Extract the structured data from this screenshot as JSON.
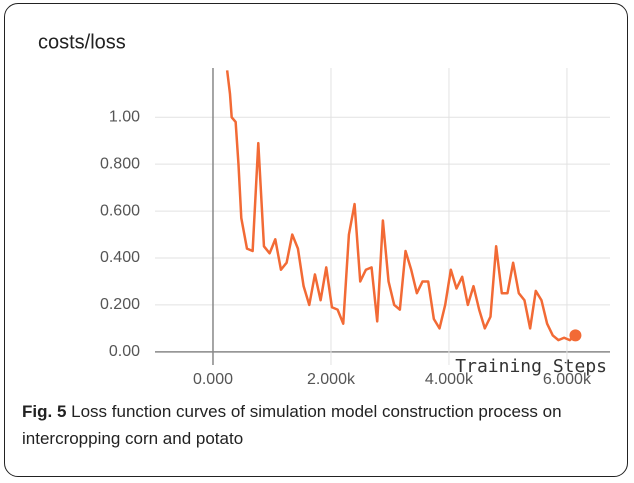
{
  "chart_data": {
    "type": "line",
    "title": "costs/loss",
    "x_label": "Training Steps",
    "x": [
      240,
      288,
      317,
      384,
      432,
      480,
      576,
      672,
      768,
      864,
      960,
      1056,
      1152,
      1248,
      1344,
      1440,
      1536,
      1632,
      1728,
      1824,
      1920,
      2016,
      2112,
      2208,
      2304,
      2400,
      2496,
      2592,
      2688,
      2784,
      2880,
      2976,
      3072,
      3168,
      3264,
      3360,
      3456,
      3552,
      3648,
      3744,
      3840,
      3936,
      4032,
      4128,
      4224,
      4320,
      4416,
      4512,
      4608,
      4704,
      4800,
      4896,
      4992,
      5088,
      5184,
      5280,
      5376,
      5472,
      5568,
      5664,
      5760,
      5856,
      5952,
      6048,
      6144
    ],
    "series": [
      {
        "name": "costs/loss",
        "color": "#f26a35",
        "values": [
          1.2,
          1.1,
          1.0,
          0.98,
          0.8,
          0.57,
          0.44,
          0.43,
          0.89,
          0.45,
          0.42,
          0.48,
          0.35,
          0.38,
          0.5,
          0.44,
          0.28,
          0.2,
          0.33,
          0.22,
          0.36,
          0.19,
          0.18,
          0.12,
          0.5,
          0.63,
          0.3,
          0.35,
          0.36,
          0.13,
          0.56,
          0.3,
          0.2,
          0.18,
          0.43,
          0.35,
          0.25,
          0.3,
          0.3,
          0.14,
          0.1,
          0.2,
          0.35,
          0.27,
          0.32,
          0.2,
          0.28,
          0.18,
          0.1,
          0.15,
          0.45,
          0.25,
          0.25,
          0.38,
          0.25,
          0.22,
          0.1,
          0.26,
          0.22,
          0.12,
          0.07,
          0.05,
          0.06,
          0.05,
          0.07
        ]
      }
    ],
    "xlim": [
      -983,
      6730
    ],
    "xticks": [
      {
        "value": 0,
        "label": "0.000"
      },
      {
        "value": 2000,
        "label": "2.000k"
      },
      {
        "value": 4000,
        "label": "4.000k"
      },
      {
        "value": 6000,
        "label": "6.000k"
      }
    ],
    "ylim": [
      -0.12,
      1.21
    ],
    "yticks": [
      {
        "value": 0,
        "label": "0.00"
      },
      {
        "value": 0.2,
        "label": "0.200"
      },
      {
        "value": 0.4,
        "label": "0.400"
      },
      {
        "value": 0.6,
        "label": "0.600"
      },
      {
        "value": 0.8,
        "label": "0.800"
      },
      {
        "value": 1,
        "label": "1.00"
      }
    ],
    "grid": true
  },
  "caption": {
    "label": "Fig. 5",
    "text": "Loss function curves of simulation model construction process on intercropping corn and potato"
  }
}
